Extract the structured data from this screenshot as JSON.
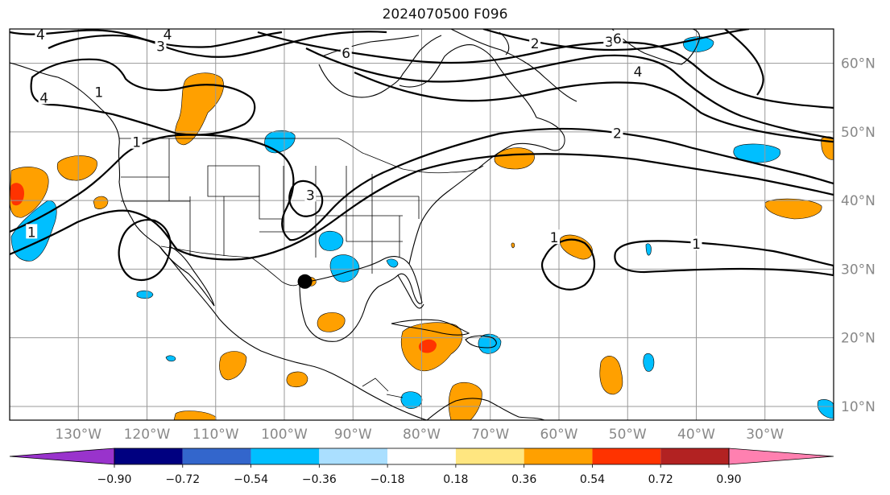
{
  "title": "2024070500 F096",
  "map": {
    "projection": "PlateCarree",
    "lon_range": [
      -140,
      -20
    ],
    "lat_range": [
      8,
      65
    ],
    "lon_ticks": [
      {
        "lon": -130,
        "label": "130°W"
      },
      {
        "lon": -120,
        "label": "120°W"
      },
      {
        "lon": -110,
        "label": "110°W"
      },
      {
        "lon": -100,
        "label": "100°W"
      },
      {
        "lon": -90,
        "label": "90°W"
      },
      {
        "lon": -80,
        "label": "80°W"
      },
      {
        "lon": -70,
        "label": "70°W"
      },
      {
        "lon": -60,
        "label": "60°W"
      },
      {
        "lon": -50,
        "label": "50°W"
      },
      {
        "lon": -40,
        "label": "40°W"
      },
      {
        "lon": -30,
        "label": "30°W"
      }
    ],
    "lat_ticks": [
      {
        "lat": 60,
        "label": "60°N"
      },
      {
        "lat": 50,
        "label": "50°N"
      },
      {
        "lat": 40,
        "label": "40°N"
      },
      {
        "lat": 30,
        "label": "30°N"
      },
      {
        "lat": 20,
        "label": "20°N"
      },
      {
        "lat": 10,
        "label": "10°N"
      }
    ],
    "gridlines": true,
    "marker": {
      "name": "storm-center-marker",
      "lon": -97,
      "lat": 28.2,
      "color": "#000000"
    }
  },
  "contour_labels": [
    {
      "text": "1",
      "lon": -127,
      "lat": 55.8
    },
    {
      "text": "1",
      "lon": -121.5,
      "lat": 48.5
    },
    {
      "text": "1",
      "lon": -136.8,
      "lat": 35.4
    },
    {
      "text": "3",
      "lon": -96.2,
      "lat": 40.8
    },
    {
      "text": "6",
      "lon": -91,
      "lat": 61.5
    },
    {
      "text": "2",
      "lon": -63.5,
      "lat": 62.9
    },
    {
      "text": "3",
      "lon": -52.7,
      "lat": 63.1
    },
    {
      "text": "6",
      "lon": -51.5,
      "lat": 63.6
    },
    {
      "text": "4",
      "lon": -48.5,
      "lat": 58.8
    },
    {
      "text": "2",
      "lon": -51.5,
      "lat": 49.8
    },
    {
      "text": "1",
      "lon": -60.7,
      "lat": 34.6
    },
    {
      "text": "1",
      "lon": -40,
      "lat": 33.7
    },
    {
      "text": "4",
      "lon": -135.5,
      "lat": 64.2
    },
    {
      "text": "4",
      "lon": -117,
      "lat": 64.2
    },
    {
      "text": "3",
      "lon": -118,
      "lat": 62.5
    },
    {
      "text": "4",
      "lon": -135,
      "lat": 55
    }
  ],
  "colorbar": {
    "extend": "both",
    "colors": [
      "#9933cc",
      "#000080",
      "#3366cc",
      "#00bfff",
      "#aadfff",
      "#ffffff",
      "#ffe680",
      "#ffa000",
      "#ff3300",
      "#b22222",
      "#ff80b0"
    ],
    "boundaries": [
      -0.9,
      -0.72,
      -0.54,
      -0.36,
      -0.18,
      0.18,
      0.36,
      0.54,
      0.72,
      0.9
    ],
    "tick_labels": [
      "−0.90",
      "−0.72",
      "−0.54",
      "−0.36",
      "−0.18",
      "0.18",
      "0.36",
      "0.54",
      "0.72",
      "0.90"
    ]
  },
  "colors": {
    "positive_fill": "#ffa000",
    "strong_positive_fill": "#ff3300",
    "negative_fill": "#00bfff",
    "contour": "#000000",
    "grid": "#999999",
    "axis_label": "#888888"
  }
}
